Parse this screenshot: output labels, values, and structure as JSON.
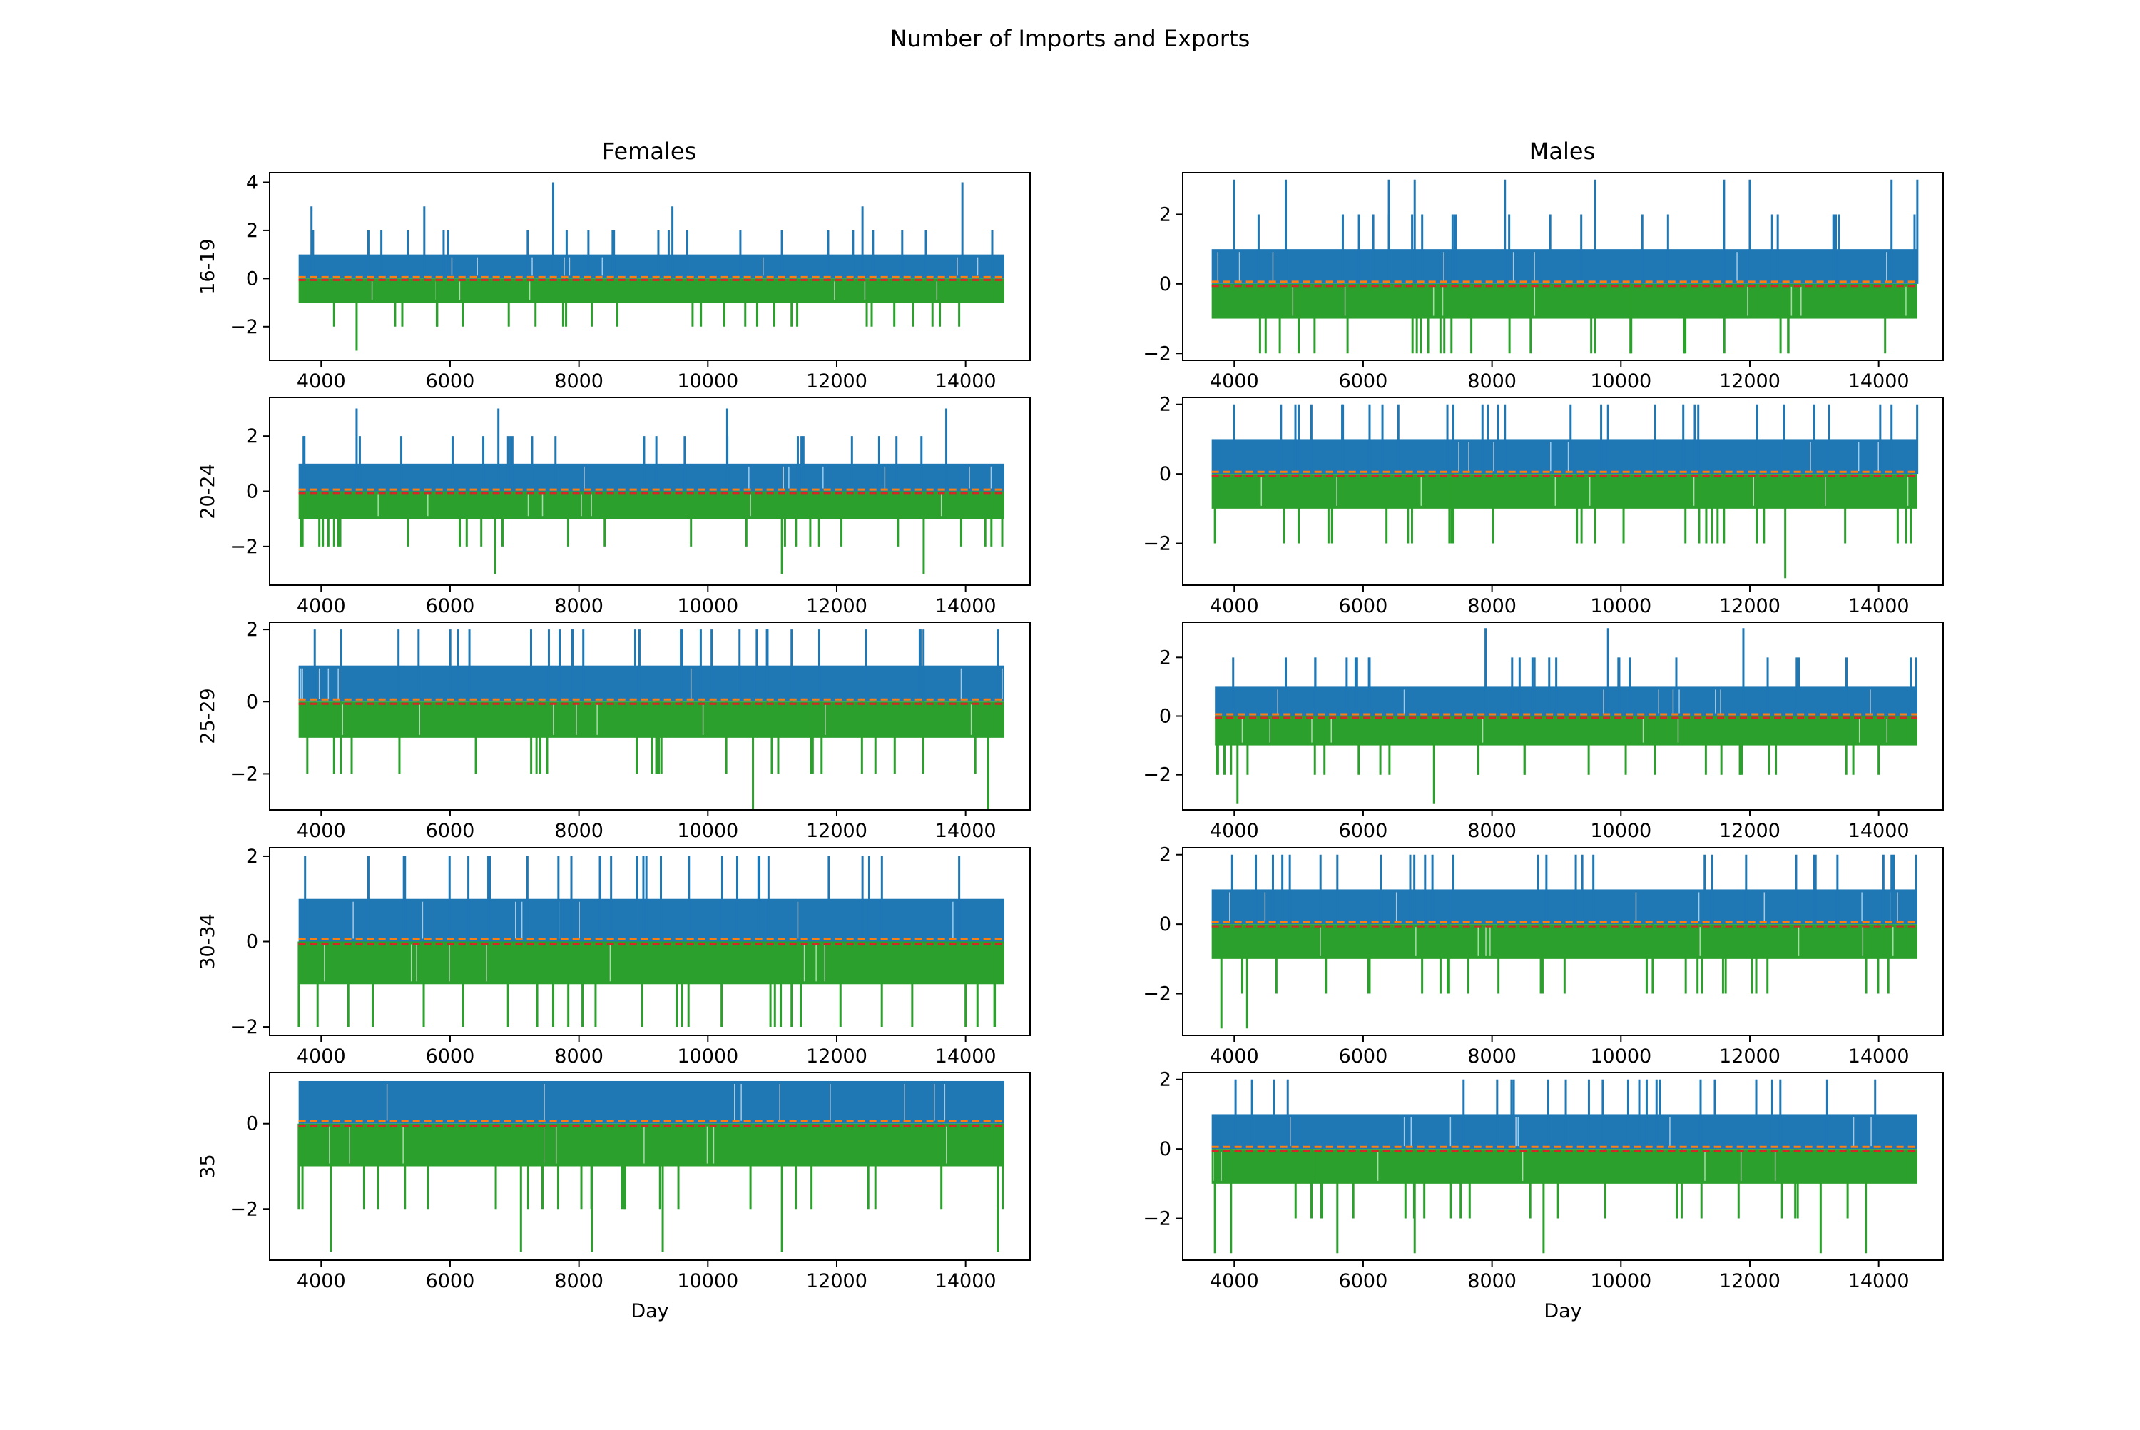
{
  "figure": {
    "title": "Number of Imports and Exports",
    "column_titles": [
      "Females",
      "Males"
    ],
    "row_labels": [
      "16-19",
      "20-24",
      "25-29",
      "30-34",
      "35"
    ],
    "xlabel": "Day"
  },
  "colors": {
    "imports": "#1f77b4",
    "exports": "#2ca02c",
    "mean_dashed": "#ff7f0e",
    "mean_dashed_2": "#d62728"
  },
  "chart_data": [
    {
      "type": "line",
      "panel": "Females 16-19",
      "column": "Females",
      "row_label": "16-19",
      "xlabel": "",
      "ylabel": "16-19",
      "xlim": [
        3200,
        15000
      ],
      "ylim": [
        -3.4,
        4.4
      ],
      "x_ticks": [
        4000,
        6000,
        8000,
        10000,
        12000,
        14000
      ],
      "y_ticks": [
        -2,
        0,
        2,
        4
      ],
      "x_range": [
        3650,
        14600
      ],
      "series": [
        {
          "name": "",
          "role": "imports",
          "body_max": 1,
          "spikes": [
            {
              "x": 3850,
              "y": 3
            },
            {
              "x": 5600,
              "y": 3
            },
            {
              "x": 7600,
              "y": 4
            },
            {
              "x": 9450,
              "y": 3
            },
            {
              "x": 12400,
              "y": 3
            },
            {
              "x": 13950,
              "y": 4
            }
          ]
        },
        {
          "name": "",
          "role": "exports",
          "body_min": -1,
          "spikes": [
            {
              "x": 4200,
              "y": -2
            },
            {
              "x": 4550,
              "y": -3
            },
            {
              "x": 5800,
              "y": -2
            },
            {
              "x": 7800,
              "y": -2
            },
            {
              "x": 11300,
              "y": -2
            },
            {
              "x": 13900,
              "y": -2
            }
          ]
        }
      ]
    },
    {
      "type": "line",
      "panel": "Males 16-19",
      "column": "Males",
      "row_label": "16-19",
      "xlabel": "",
      "ylabel": "",
      "xlim": [
        3200,
        15000
      ],
      "ylim": [
        -2.2,
        3.2
      ],
      "x_ticks": [
        4000,
        6000,
        8000,
        10000,
        12000,
        14000
      ],
      "y_ticks": [
        -2,
        0,
        2
      ],
      "x_range": [
        3650,
        14600
      ],
      "series": [
        {
          "name": "",
          "role": "imports",
          "body_max": 1,
          "spikes": [
            {
              "x": 4000,
              "y": 3
            },
            {
              "x": 4800,
              "y": 3
            },
            {
              "x": 6400,
              "y": 3
            },
            {
              "x": 6800,
              "y": 3
            },
            {
              "x": 8200,
              "y": 3
            },
            {
              "x": 9600,
              "y": 3
            },
            {
              "x": 11600,
              "y": 3
            },
            {
              "x": 12000,
              "y": 3
            },
            {
              "x": 14200,
              "y": 3
            },
            {
              "x": 14600,
              "y": 3
            }
          ]
        },
        {
          "name": "",
          "role": "exports",
          "body_min": -1,
          "spikes": [
            {
              "x": 4400,
              "y": -2
            },
            {
              "x": 5000,
              "y": -2
            },
            {
              "x": 7200,
              "y": -2
            },
            {
              "x": 8600,
              "y": -2
            },
            {
              "x": 11000,
              "y": -2
            },
            {
              "x": 12600,
              "y": -2
            },
            {
              "x": 14100,
              "y": -2
            }
          ]
        }
      ]
    },
    {
      "type": "line",
      "panel": "Females 20-24",
      "column": "Females",
      "row_label": "20-24",
      "xlabel": "",
      "ylabel": "20-24",
      "xlim": [
        3200,
        15000
      ],
      "ylim": [
        -3.4,
        3.4
      ],
      "x_ticks": [
        4000,
        6000,
        8000,
        10000,
        12000,
        14000
      ],
      "y_ticks": [
        -2,
        0,
        2
      ],
      "x_range": [
        3650,
        14600
      ],
      "series": [
        {
          "name": "",
          "role": "imports",
          "body_max": 1,
          "spikes": [
            {
              "x": 4550,
              "y": 3
            },
            {
              "x": 6750,
              "y": 3
            },
            {
              "x": 10300,
              "y": 3
            },
            {
              "x": 13700,
              "y": 3
            }
          ]
        },
        {
          "name": "",
          "role": "exports",
          "body_min": -1,
          "spikes": [
            {
              "x": 4200,
              "y": -2
            },
            {
              "x": 6150,
              "y": -2
            },
            {
              "x": 6700,
              "y": -3
            },
            {
              "x": 8400,
              "y": -2
            },
            {
              "x": 11150,
              "y": -3
            },
            {
              "x": 12950,
              "y": -2
            },
            {
              "x": 13350,
              "y": -3
            },
            {
              "x": 14400,
              "y": -2
            }
          ]
        }
      ]
    },
    {
      "type": "line",
      "panel": "Males 20-24",
      "column": "Males",
      "row_label": "20-24",
      "xlabel": "",
      "ylabel": "",
      "xlim": [
        3200,
        15000
      ],
      "ylim": [
        -3.2,
        2.2
      ],
      "x_ticks": [
        4000,
        6000,
        8000,
        10000,
        12000,
        14000
      ],
      "y_ticks": [
        -2,
        0,
        2
      ],
      "x_range": [
        3650,
        14600
      ],
      "series": [
        {
          "name": "",
          "role": "imports",
          "body_max": 1,
          "spikes": [
            {
              "x": 4000,
              "y": 2
            },
            {
              "x": 5000,
              "y": 2
            },
            {
              "x": 6300,
              "y": 2
            },
            {
              "x": 8200,
              "y": 2
            },
            {
              "x": 9800,
              "y": 2
            },
            {
              "x": 11200,
              "y": 2
            },
            {
              "x": 13000,
              "y": 2
            },
            {
              "x": 14200,
              "y": 2
            }
          ]
        },
        {
          "name": "",
          "role": "exports",
          "body_min": -1,
          "spikes": [
            {
              "x": 3700,
              "y": -2
            },
            {
              "x": 5000,
              "y": -2
            },
            {
              "x": 7400,
              "y": -2
            },
            {
              "x": 9600,
              "y": -2
            },
            {
              "x": 11500,
              "y": -2
            },
            {
              "x": 12550,
              "y": -3
            },
            {
              "x": 14500,
              "y": -2
            }
          ]
        }
      ]
    },
    {
      "type": "line",
      "panel": "Females 25-29",
      "column": "Females",
      "row_label": "25-29",
      "xlabel": "",
      "ylabel": "25-29",
      "xlim": [
        3200,
        15000
      ],
      "ylim": [
        -3.0,
        2.2
      ],
      "x_ticks": [
        4000,
        6000,
        8000,
        10000,
        12000,
        14000
      ],
      "y_ticks": [
        -2,
        0,
        2
      ],
      "x_range": [
        3650,
        14600
      ],
      "series": [
        {
          "name": "",
          "role": "imports",
          "body_max": 1,
          "spikes": [
            {
              "x": 3900,
              "y": 2
            },
            {
              "x": 5200,
              "y": 2
            },
            {
              "x": 6300,
              "y": 2
            },
            {
              "x": 7700,
              "y": 2
            },
            {
              "x": 9600,
              "y": 2
            },
            {
              "x": 11300,
              "y": 2
            },
            {
              "x": 13300,
              "y": 2
            },
            {
              "x": 14500,
              "y": 2
            }
          ]
        },
        {
          "name": "",
          "role": "exports",
          "body_min": -1,
          "spikes": [
            {
              "x": 4200,
              "y": -2
            },
            {
              "x": 6400,
              "y": -2
            },
            {
              "x": 7400,
              "y": -2
            },
            {
              "x": 9200,
              "y": -2
            },
            {
              "x": 10700,
              "y": -3
            },
            {
              "x": 12900,
              "y": -2
            },
            {
              "x": 14350,
              "y": -3
            }
          ]
        }
      ]
    },
    {
      "type": "line",
      "panel": "Males 25-29",
      "column": "Males",
      "row_label": "25-29",
      "xlabel": "",
      "ylabel": "",
      "xlim": [
        3200,
        15000
      ],
      "ylim": [
        -3.2,
        3.2
      ],
      "x_ticks": [
        4000,
        6000,
        8000,
        10000,
        12000,
        14000
      ],
      "y_ticks": [
        -2,
        0,
        2
      ],
      "x_range": [
        3700,
        14600
      ],
      "series": [
        {
          "name": "",
          "role": "imports",
          "body_max": 1,
          "spikes": [
            {
              "x": 4800,
              "y": 2
            },
            {
              "x": 6100,
              "y": 2
            },
            {
              "x": 7900,
              "y": 3
            },
            {
              "x": 9800,
              "y": 3
            },
            {
              "x": 11900,
              "y": 3
            },
            {
              "x": 13500,
              "y": 2
            }
          ]
        },
        {
          "name": "",
          "role": "exports",
          "body_min": -1,
          "spikes": [
            {
              "x": 3950,
              "y": -2
            },
            {
              "x": 4050,
              "y": -3
            },
            {
              "x": 5400,
              "y": -2
            },
            {
              "x": 7100,
              "y": -3
            },
            {
              "x": 9500,
              "y": -2
            },
            {
              "x": 12300,
              "y": -2
            },
            {
              "x": 14000,
              "y": -2
            }
          ]
        }
      ]
    },
    {
      "type": "line",
      "panel": "Females 30-34",
      "column": "Females",
      "row_label": "30-34",
      "xlabel": "",
      "ylabel": "30-34",
      "xlim": [
        3200,
        15000
      ],
      "ylim": [
        -2.2,
        2.2
      ],
      "x_ticks": [
        4000,
        6000,
        8000,
        10000,
        12000,
        14000
      ],
      "y_ticks": [
        -2,
        0,
        2
      ],
      "x_range": [
        3650,
        14600
      ],
      "series": [
        {
          "name": "",
          "role": "imports",
          "body_max": 1,
          "spikes": [
            {
              "x": 3750,
              "y": 2
            },
            {
              "x": 5300,
              "y": 2
            },
            {
              "x": 7200,
              "y": 2
            },
            {
              "x": 9000,
              "y": 2
            },
            {
              "x": 10800,
              "y": 2
            },
            {
              "x": 12400,
              "y": 2
            },
            {
              "x": 13900,
              "y": 2
            }
          ]
        },
        {
          "name": "",
          "role": "exports",
          "body_min": -1,
          "spikes": [
            {
              "x": 4800,
              "y": -2
            },
            {
              "x": 6200,
              "y": -2
            },
            {
              "x": 7600,
              "y": -2
            },
            {
              "x": 9700,
              "y": -2
            },
            {
              "x": 11300,
              "y": -2
            },
            {
              "x": 12700,
              "y": -2
            },
            {
              "x": 14000,
              "y": -2
            }
          ]
        }
      ]
    },
    {
      "type": "line",
      "panel": "Males 30-34",
      "column": "Males",
      "row_label": "30-34",
      "xlabel": "",
      "ylabel": "",
      "xlim": [
        3200,
        15000
      ],
      "ylim": [
        -3.2,
        2.2
      ],
      "x_ticks": [
        4000,
        6000,
        8000,
        10000,
        12000,
        14000
      ],
      "y_ticks": [
        -2,
        0,
        2
      ],
      "x_range": [
        3650,
        14600
      ],
      "series": [
        {
          "name": "",
          "role": "imports",
          "body_max": 1,
          "spikes": [
            {
              "x": 4600,
              "y": 2
            },
            {
              "x": 5600,
              "y": 2
            },
            {
              "x": 7400,
              "y": 2
            },
            {
              "x": 9300,
              "y": 2
            },
            {
              "x": 11300,
              "y": 2
            },
            {
              "x": 13000,
              "y": 2
            },
            {
              "x": 14200,
              "y": 2
            }
          ]
        },
        {
          "name": "",
          "role": "exports",
          "body_min": -1,
          "spikes": [
            {
              "x": 3800,
              "y": -3
            },
            {
              "x": 4200,
              "y": -3
            },
            {
              "x": 6100,
              "y": -2
            },
            {
              "x": 8100,
              "y": -2
            },
            {
              "x": 10400,
              "y": -2
            },
            {
              "x": 12100,
              "y": -2
            },
            {
              "x": 14150,
              "y": -2
            }
          ]
        }
      ]
    },
    {
      "type": "line",
      "panel": "Females 35",
      "column": "Females",
      "row_label": "35",
      "xlabel": "Day",
      "ylabel": "35",
      "xlim": [
        3200,
        15000
      ],
      "ylim": [
        -3.2,
        1.2
      ],
      "x_ticks": [
        4000,
        6000,
        8000,
        10000,
        12000,
        14000
      ],
      "y_ticks": [
        -2,
        0
      ],
      "x_range": [
        3650,
        14600
      ],
      "series": [
        {
          "name": "",
          "role": "imports",
          "body_max": 1,
          "spikes": []
        },
        {
          "name": "",
          "role": "exports",
          "body_min": -1,
          "spikes": [
            {
              "x": 4150,
              "y": -3
            },
            {
              "x": 5300,
              "y": -2
            },
            {
              "x": 7100,
              "y": -3
            },
            {
              "x": 8200,
              "y": -3
            },
            {
              "x": 9300,
              "y": -3
            },
            {
              "x": 11150,
              "y": -3
            },
            {
              "x": 12600,
              "y": -2
            },
            {
              "x": 14500,
              "y": -3
            }
          ]
        }
      ]
    },
    {
      "type": "line",
      "panel": "Males 35",
      "column": "Males",
      "row_label": "35",
      "xlabel": "Day",
      "ylabel": "",
      "xlim": [
        3200,
        15000
      ],
      "ylim": [
        -3.2,
        2.2
      ],
      "x_ticks": [
        4000,
        6000,
        8000,
        10000,
        12000,
        14000
      ],
      "y_ticks": [
        -2,
        0,
        2
      ],
      "x_range": [
        3650,
        14600
      ],
      "series": [
        {
          "name": "",
          "role": "imports",
          "body_max": 1,
          "spikes": [
            {
              "x": 12100,
              "y": 2
            },
            {
              "x": 13200,
              "y": 2
            }
          ]
        },
        {
          "name": "",
          "role": "exports",
          "body_min": -1,
          "spikes": [
            {
              "x": 3700,
              "y": -3
            },
            {
              "x": 3950,
              "y": -3
            },
            {
              "x": 5600,
              "y": -3
            },
            {
              "x": 6800,
              "y": -3
            },
            {
              "x": 8800,
              "y": -3
            },
            {
              "x": 13100,
              "y": -3
            },
            {
              "x": 13800,
              "y": -3
            }
          ]
        }
      ]
    }
  ]
}
